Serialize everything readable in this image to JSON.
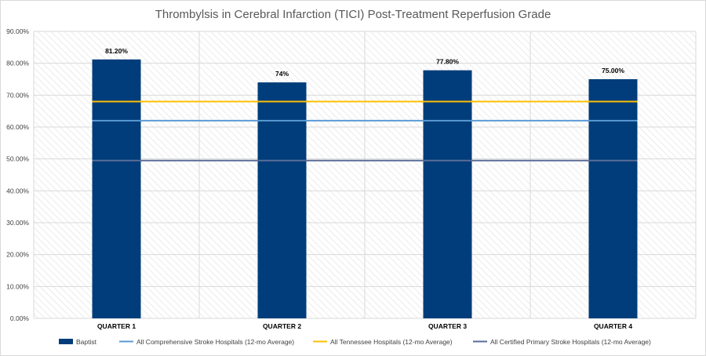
{
  "chart_data": {
    "type": "bar",
    "title": "Thrombylsis in Cerebral Infarction (TICI) Post-Treatment Reperfusion Grade",
    "xlabel": "",
    "ylabel": "",
    "ylim": [
      0,
      90
    ],
    "y_tick_step": 10,
    "y_tick_labels": [
      "0.00%",
      "10.00%",
      "20.00%",
      "30.00%",
      "40.00%",
      "50.00%",
      "60.00%",
      "70.00%",
      "80.00%",
      "90.00%"
    ],
    "categories": [
      "QUARTER 1",
      "QUARTER 2",
      "QUARTER 3",
      "QUARTER 4"
    ],
    "grid": true,
    "legend_position": "bottom",
    "series": [
      {
        "name": "Baptist",
        "kind": "bar",
        "color": "#003d7a",
        "values": [
          81.2,
          74,
          77.8,
          75
        ],
        "data_labels": [
          "81.20%",
          "74%",
          "77.80%",
          "75.00%"
        ]
      },
      {
        "name": "All Comprehensive Stroke Hospitals (12-mo Average)",
        "kind": "line",
        "color": "#5b9bd5",
        "values": [
          62,
          62,
          62,
          62
        ]
      },
      {
        "name": "All Tennessee Hospitals (12-mo Average)",
        "kind": "line",
        "color": "#ffc000",
        "values": [
          68,
          68,
          68,
          68
        ]
      },
      {
        "name": "All Certified Primary Stroke Hospitals (12-mo Average)",
        "kind": "line",
        "color": "#5a6d98",
        "values": [
          49.5,
          49.5,
          49.5,
          49.5
        ]
      }
    ]
  }
}
